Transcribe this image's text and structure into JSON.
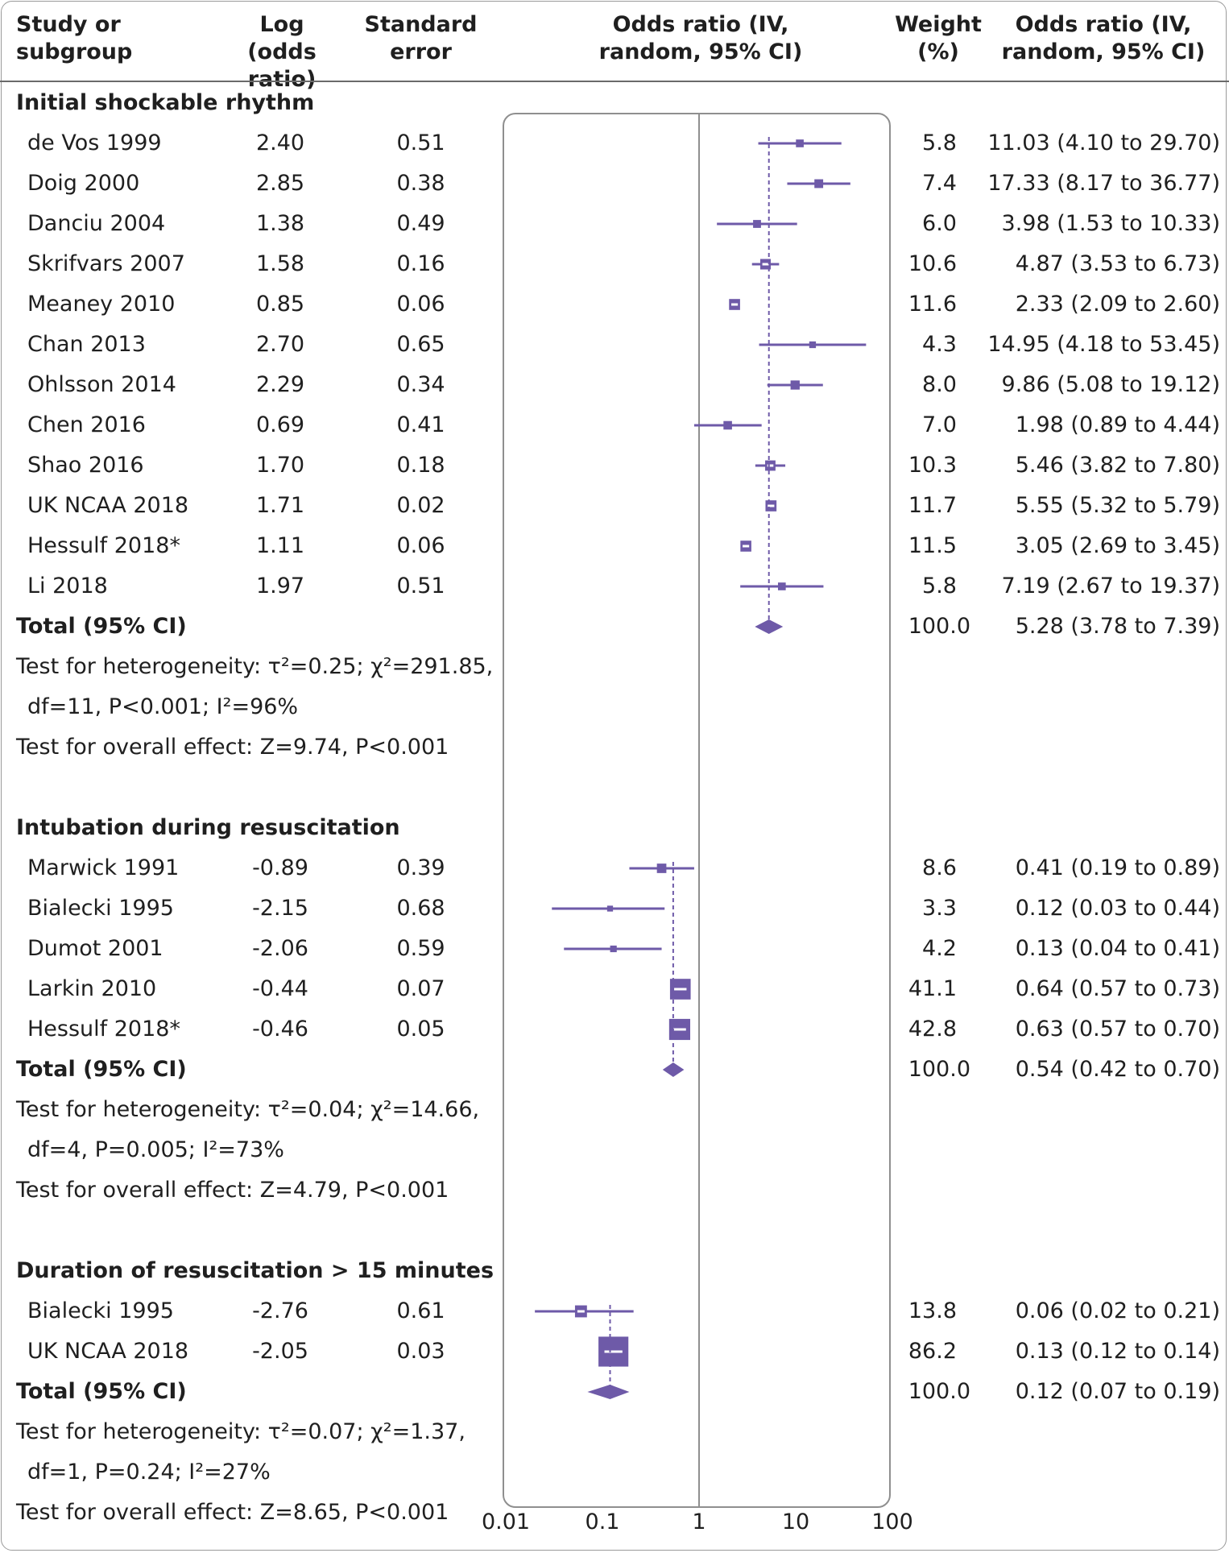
{
  "columns": {
    "study": "Study or\nsubgroup",
    "log_or": "Log\n(odds ratio)",
    "se": "Standard\nerror",
    "plot": "Odds ratio (IV,\nrandom, 95% CI)",
    "weight": "Weight\n(%)",
    "or_ci": "Odds ratio (IV,\nrandom, 95% CI)"
  },
  "colors": {
    "marker": "#6e5aa8",
    "axis": "#8f8f8f"
  },
  "chart_data": {
    "type": "forest",
    "x_scale": "log",
    "xlim": [
      0.01,
      100
    ],
    "x_ticks": [
      "0.01",
      "0.1",
      "1",
      "10",
      "100"
    ],
    "groups": [
      {
        "name": "Initial shockable rhythm",
        "studies": [
          {
            "study": "de Vos 1999",
            "log_or": "2.40",
            "se": "0.51",
            "weight": "5.8",
            "or_ci": "11.03 (4.10 to 29.70)",
            "or": 11.03,
            "lo": 4.1,
            "hi": 29.7
          },
          {
            "study": "Doig 2000",
            "log_or": "2.85",
            "se": "0.38",
            "weight": "7.4",
            "or_ci": "17.33 (8.17 to 36.77)",
            "or": 17.33,
            "lo": 8.17,
            "hi": 36.77
          },
          {
            "study": "Danciu 2004",
            "log_or": "1.38",
            "se": "0.49",
            "weight": "6.0",
            "or_ci": "3.98 (1.53 to 10.33)",
            "or": 3.98,
            "lo": 1.53,
            "hi": 10.33
          },
          {
            "study": "Skrifvars 2007",
            "log_or": "1.58",
            "se": "0.16",
            "weight": "10.6",
            "or_ci": "4.87 (3.53 to 6.73)",
            "or": 4.87,
            "lo": 3.53,
            "hi": 6.73
          },
          {
            "study": "Meaney 2010",
            "log_or": "0.85",
            "se": "0.06",
            "weight": "11.6",
            "or_ci": "2.33 (2.09 to 2.60)",
            "or": 2.33,
            "lo": 2.09,
            "hi": 2.6
          },
          {
            "study": "Chan 2013",
            "log_or": "2.70",
            "se": "0.65",
            "weight": "4.3",
            "or_ci": "14.95 (4.18 to 53.45)",
            "or": 14.95,
            "lo": 4.18,
            "hi": 53.45
          },
          {
            "study": "Ohlsson 2014",
            "log_or": "2.29",
            "se": "0.34",
            "weight": "8.0",
            "or_ci": "9.86 (5.08 to 19.12)",
            "or": 9.86,
            "lo": 5.08,
            "hi": 19.12
          },
          {
            "study": "Chen 2016",
            "log_or": "0.69",
            "se": "0.41",
            "weight": "7.0",
            "or_ci": "1.98 (0.89 to 4.44)",
            "or": 1.98,
            "lo": 0.89,
            "hi": 4.44
          },
          {
            "study": "Shao 2016",
            "log_or": "1.70",
            "se": "0.18",
            "weight": "10.3",
            "or_ci": "5.46 (3.82 to 7.80)",
            "or": 5.46,
            "lo": 3.82,
            "hi": 7.8
          },
          {
            "study": "UK NCAA 2018",
            "log_or": "1.71",
            "se": "0.02",
            "weight": "11.7",
            "or_ci": "5.55 (5.32 to 5.79)",
            "or": 5.55,
            "lo": 5.32,
            "hi": 5.79
          },
          {
            "study": "Hessulf 2018*",
            "log_or": "1.11",
            "se": "0.06",
            "weight": "11.5",
            "or_ci": "3.05 (2.69 to 3.45)",
            "or": 3.05,
            "lo": 2.69,
            "hi": 3.45
          },
          {
            "study": "Li 2018",
            "log_or": "1.97",
            "se": "0.51",
            "weight": "5.8",
            "or_ci": "7.19 (2.67 to 19.37)",
            "or": 7.19,
            "lo": 2.67,
            "hi": 19.37
          }
        ],
        "total": {
          "label": "Total (95% CI)",
          "weight": "100.0",
          "or_ci": "5.28 (3.78 to 7.39)",
          "or": 5.28,
          "lo": 3.78,
          "hi": 7.39
        },
        "het_line1": "Test for heterogeneity: τ²=0.25; χ²=291.85,",
        "het_line2": "df=11, P<0.001; I²=96%",
        "overall": "Test for overall effect: Z=9.74, P<0.001"
      },
      {
        "name": "Intubation during resuscitation",
        "studies": [
          {
            "study": "Marwick 1991",
            "log_or": "-0.89",
            "se": "0.39",
            "weight": "8.6",
            "or_ci": "0.41 (0.19 to 0.89)",
            "or": 0.41,
            "lo": 0.19,
            "hi": 0.89
          },
          {
            "study": "Bialecki 1995",
            "log_or": "-2.15",
            "se": "0.68",
            "weight": "3.3",
            "or_ci": "0.12 (0.03 to 0.44)",
            "or": 0.12,
            "lo": 0.03,
            "hi": 0.44
          },
          {
            "study": "Dumot 2001",
            "log_or": "-2.06",
            "se": "0.59",
            "weight": "4.2",
            "or_ci": "0.13 (0.04 to 0.41)",
            "or": 0.13,
            "lo": 0.04,
            "hi": 0.41
          },
          {
            "study": "Larkin 2010",
            "log_or": "-0.44",
            "se": "0.07",
            "weight": "41.1",
            "or_ci": "0.64 (0.57 to 0.73)",
            "or": 0.64,
            "lo": 0.57,
            "hi": 0.73
          },
          {
            "study": "Hessulf 2018*",
            "log_or": "-0.46",
            "se": "0.05",
            "weight": "42.8",
            "or_ci": "0.63 (0.57 to 0.70)",
            "or": 0.63,
            "lo": 0.57,
            "hi": 0.7
          }
        ],
        "total": {
          "label": "Total (95% CI)",
          "weight": "100.0",
          "or_ci": "0.54 (0.42 to 0.70)",
          "or": 0.54,
          "lo": 0.42,
          "hi": 0.7
        },
        "het_line1": "Test for heterogeneity: τ²=0.04; χ²=14.66,",
        "het_line2": "df=4, P=0.005; I²=73%",
        "overall": "Test for overall effect: Z=4.79, P<0.001"
      },
      {
        "name": "Duration of resuscitation > 15 minutes",
        "studies": [
          {
            "study": "Bialecki 1995",
            "log_or": "-2.76",
            "se": "0.61",
            "weight": "13.8",
            "or_ci": "0.06 (0.02 to 0.21)",
            "or": 0.06,
            "lo": 0.02,
            "hi": 0.21
          },
          {
            "study": "UK NCAA 2018",
            "log_or": "-2.05",
            "se": "0.03",
            "weight": "86.2",
            "or_ci": "0.13 (0.12 to 0.14)",
            "or": 0.13,
            "lo": 0.12,
            "hi": 0.14
          }
        ],
        "total": {
          "label": "Total (95% CI)",
          "weight": "100.0",
          "or_ci": "0.12 (0.07 to 0.19)",
          "or": 0.12,
          "lo": 0.07,
          "hi": 0.19
        },
        "het_line1": "Test for heterogeneity: τ²=0.07; χ²=1.37,",
        "het_line2": "df=1, P=0.24; I²=27%",
        "overall": "Test for overall effect: Z=8.65, P<0.001"
      }
    ]
  }
}
